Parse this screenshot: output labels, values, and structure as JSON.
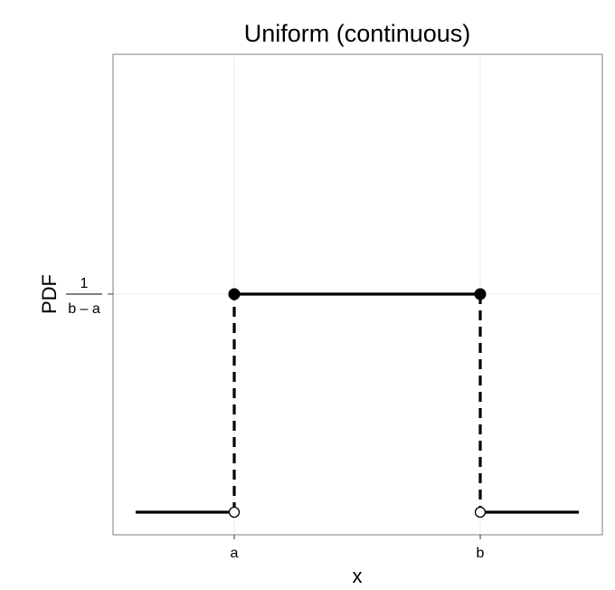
{
  "chart_data": {
    "type": "line",
    "title": "Uniform (continuous)",
    "xlabel": "x",
    "ylabel": "PDF",
    "x_ticks": [
      "a",
      "b"
    ],
    "y_tick": {
      "numerator": "1",
      "denominator": "b – a"
    },
    "grid": true,
    "series": [
      {
        "segment": "left-tail",
        "x": [
          "x_min",
          "a"
        ],
        "y": [
          0,
          0
        ]
      },
      {
        "segment": "support",
        "x": [
          "a",
          "b"
        ],
        "y": [
          "1/(b-a)",
          "1/(b-a)"
        ]
      },
      {
        "segment": "right-tail",
        "x": [
          "b",
          "x_max"
        ],
        "y": [
          0,
          0
        ]
      }
    ],
    "jumps": [
      {
        "x": "a",
        "from": 0,
        "to": "1/(b-a)",
        "style": "dashed"
      },
      {
        "x": "b",
        "from": "1/(b-a)",
        "to": 0,
        "style": "dashed"
      }
    ],
    "points": [
      {
        "x": "a",
        "y": "1/(b-a)",
        "filled": true
      },
      {
        "x": "b",
        "y": "1/(b-a)",
        "filled": true
      },
      {
        "x": "a",
        "y": 0,
        "filled": false
      },
      {
        "x": "b",
        "y": 0,
        "filled": false
      }
    ],
    "colors": {
      "line": "#000000",
      "grid": "#ebebeb",
      "panel_border": "#7f7f7f"
    }
  }
}
